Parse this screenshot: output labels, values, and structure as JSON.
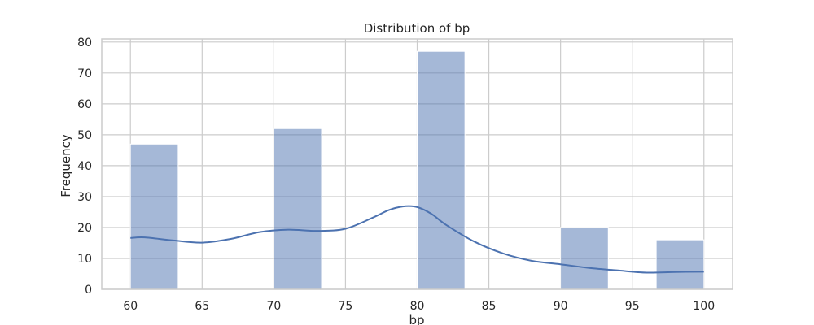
{
  "chart_data": {
    "type": "bar",
    "title": "Distribution of bp",
    "xlabel": "bp",
    "ylabel": "Frequency",
    "xlim": [
      58,
      102
    ],
    "ylim": [
      0,
      81
    ],
    "x_ticks": [
      60,
      65,
      70,
      75,
      80,
      85,
      90,
      95,
      100
    ],
    "y_ticks": [
      0,
      10,
      20,
      30,
      40,
      50,
      60,
      70,
      80
    ],
    "bins": [
      {
        "start": 60,
        "end": 63.33,
        "count": 47
      },
      {
        "start": 70,
        "end": 73.33,
        "count": 52
      },
      {
        "start": 80,
        "end": 83.33,
        "count": 77
      },
      {
        "start": 90,
        "end": 93.33,
        "count": 20
      },
      {
        "start": 96.67,
        "end": 100,
        "count": 16
      }
    ],
    "kde": {
      "x": [
        60,
        61,
        63,
        65,
        67,
        69,
        71,
        73,
        75,
        77,
        78,
        79,
        80,
        81,
        82,
        84,
        86,
        88,
        90,
        92,
        94,
        96,
        98,
        100
      ],
      "y": [
        16.6,
        16.8,
        15.8,
        15.1,
        16.3,
        18.5,
        19.3,
        18.9,
        19.6,
        23.4,
        25.6,
        26.8,
        26.6,
        24.4,
        20.9,
        15.4,
        11.6,
        9.2,
        8.1,
        6.9,
        6.1,
        5.4,
        5.6,
        5.7
      ]
    },
    "grid": true,
    "colors": {
      "bar": "#4c72b0",
      "kde": "#4c72b0",
      "grid": "#cccccc",
      "axes": "#cccccc"
    }
  }
}
